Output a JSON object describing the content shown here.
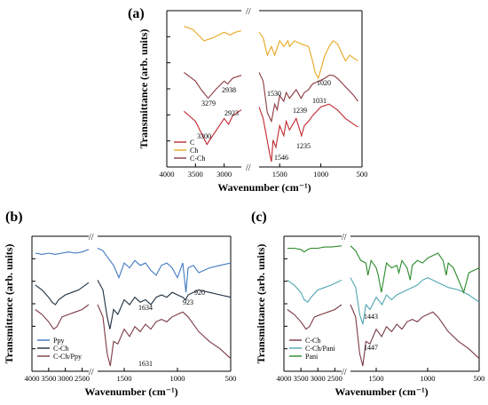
{
  "figure": {
    "panel_labels": [
      "(a)",
      "(b)",
      "(c)"
    ],
    "axis_break_symbol": "//",
    "colors": {
      "C": "#c0282e",
      "Ch": "#e6a81e",
      "C-Ch": "#8a3a3e",
      "Ppy": "#3f78c0",
      "C-Ch_dark": "#1e2f40",
      "C-Ch/Ppy": "#7a3a44",
      "C-Ch/Pani": "#4fa6b0",
      "Pani": "#2a8a2a"
    }
  },
  "chart_data": [
    {
      "panel": "(a)",
      "type": "line",
      "xlabel": "Wavenumber (cm⁻¹)",
      "ylabel": "Transmittance (arb. units)",
      "xlim": [
        4000,
        500
      ],
      "x_reversed": true,
      "x_ticks": [
        4000,
        3500,
        3000,
        1500,
        1000,
        500
      ],
      "axis_break": [
        2700,
        1750
      ],
      "grid": false,
      "legend_position": "bottom-left",
      "series": [
        {
          "name": "C",
          "color": "#c0282e",
          "x": [
            3700,
            3500,
            3400,
            3300,
            3200,
            3000,
            2923,
            2850,
            2700,
            1750,
            1700,
            1620,
            1600,
            1580,
            1546,
            1500,
            1450,
            1420,
            1380,
            1300,
            1235,
            1200,
            1150,
            1100,
            1050,
            1000,
            900,
            800,
            700,
            600,
            550
          ],
          "y": [
            0.35,
            0.28,
            0.2,
            0.12,
            0.18,
            0.3,
            0.26,
            0.32,
            0.36,
            0.38,
            0.3,
            0.05,
            0.0,
            0.15,
            0.1,
            0.25,
            0.18,
            0.28,
            0.22,
            0.3,
            0.18,
            0.25,
            0.28,
            0.32,
            0.35,
            0.38,
            0.4,
            0.36,
            0.3,
            0.26,
            0.24
          ]
        },
        {
          "name": "Ch",
          "color": "#e6a81e",
          "x": [
            3700,
            3550,
            3450,
            3350,
            3200,
            3000,
            2900,
            2800,
            2700,
            1750,
            1700,
            1650,
            1600,
            1560,
            1500,
            1450,
            1400,
            1380,
            1320,
            1250,
            1150,
            1100,
            1070,
            1031,
            1000,
            950,
            900,
            850,
            800,
            750,
            700,
            650,
            600,
            550
          ],
          "y": [
            0.94,
            0.92,
            0.88,
            0.84,
            0.86,
            0.9,
            0.88,
            0.9,
            0.91,
            0.9,
            0.86,
            0.74,
            0.8,
            0.74,
            0.84,
            0.8,
            0.84,
            0.8,
            0.84,
            0.82,
            0.8,
            0.7,
            0.62,
            0.58,
            0.64,
            0.74,
            0.8,
            0.84,
            0.82,
            0.76,
            0.7,
            0.74,
            0.72,
            0.7
          ]
        },
        {
          "name": "C-Ch",
          "color": "#8a3a3e",
          "x": [
            3700,
            3500,
            3400,
            3279,
            3150,
            3000,
            2938,
            2850,
            2700,
            1750,
            1700,
            1650,
            1600,
            1560,
            1530,
            1500,
            1450,
            1420,
            1380,
            1300,
            1239,
            1200,
            1150,
            1100,
            1020,
            950,
            900,
            850,
            800,
            700,
            600,
            550
          ],
          "y": [
            0.62,
            0.56,
            0.5,
            0.44,
            0.5,
            0.56,
            0.54,
            0.58,
            0.6,
            0.62,
            0.56,
            0.34,
            0.28,
            0.4,
            0.36,
            0.46,
            0.42,
            0.48,
            0.44,
            0.5,
            0.44,
            0.48,
            0.5,
            0.54,
            0.56,
            0.58,
            0.6,
            0.6,
            0.58,
            0.52,
            0.46,
            0.42
          ]
        }
      ],
      "annotations": [
        "3279",
        "2938",
        "2923",
        "3300",
        "1530",
        "1239",
        "1031",
        "1020",
        "1546",
        "1235"
      ],
      "legend": [
        "C",
        "Ch",
        "C-Ch"
      ]
    },
    {
      "panel": "(b)",
      "type": "line",
      "xlabel": "Wavenumber (cm⁻¹)",
      "ylabel": "Transmittance (arb. units)",
      "xlim": [
        4000,
        500
      ],
      "x_reversed": true,
      "x_ticks": [
        4000,
        3500,
        3000,
        2500,
        1500,
        1000,
        500
      ],
      "axis_break": [
        2300,
        1750
      ],
      "grid": false,
      "legend_position": "bottom-left",
      "series": [
        {
          "name": "Ppy",
          "color": "#3f78c0",
          "x": [
            3900,
            3700,
            3500,
            3300,
            3100,
            2900,
            2700,
            2500,
            2300,
            1750,
            1700,
            1650,
            1600,
            1550,
            1500,
            1450,
            1400,
            1350,
            1300,
            1250,
            1200,
            1150,
            1100,
            1050,
            1000,
            950,
            920,
            900,
            850,
            800,
            700,
            600,
            500
          ],
          "y": [
            0.92,
            0.91,
            0.92,
            0.91,
            0.92,
            0.93,
            0.92,
            0.93,
            0.95,
            0.96,
            0.94,
            0.88,
            0.82,
            0.72,
            0.84,
            0.8,
            0.86,
            0.82,
            0.84,
            0.78,
            0.74,
            0.82,
            0.84,
            0.8,
            0.72,
            0.84,
            0.6,
            0.8,
            0.82,
            0.76,
            0.8,
            0.82,
            0.84
          ]
        },
        {
          "name": "C-Ch",
          "color": "#1e2f40",
          "x": [
            3900,
            3700,
            3500,
            3400,
            3300,
            3200,
            3000,
            2800,
            2600,
            2300,
            1750,
            1700,
            1660,
            1634,
            1600,
            1560,
            1500,
            1450,
            1400,
            1350,
            1300,
            1250,
            1200,
            1150,
            1100,
            1050,
            1000,
            950,
            923,
            900,
            850,
            800,
            700,
            600,
            500
          ],
          "y": [
            0.66,
            0.62,
            0.56,
            0.52,
            0.5,
            0.54,
            0.58,
            0.6,
            0.62,
            0.68,
            0.7,
            0.62,
            0.4,
            0.3,
            0.46,
            0.42,
            0.54,
            0.5,
            0.56,
            0.52,
            0.54,
            0.5,
            0.56,
            0.58,
            0.56,
            0.6,
            0.58,
            0.56,
            0.54,
            0.58,
            0.6,
            0.62,
            0.6,
            0.58,
            0.56
          ]
        },
        {
          "name": "C-Ch/Ppy",
          "color": "#7a3a44",
          "x": [
            3900,
            3700,
            3500,
            3350,
            3250,
            3100,
            2900,
            2700,
            2500,
            2300,
            1750,
            1700,
            1660,
            1631,
            1600,
            1560,
            1500,
            1450,
            1400,
            1350,
            1300,
            1250,
            1200,
            1150,
            1100,
            1050,
            1000,
            950,
            900,
            850,
            800,
            700,
            600,
            550,
            500
          ],
          "y": [
            0.46,
            0.42,
            0.36,
            0.3,
            0.32,
            0.4,
            0.42,
            0.44,
            0.46,
            0.5,
            0.5,
            0.4,
            0.1,
            0.0,
            0.2,
            0.18,
            0.3,
            0.24,
            0.32,
            0.28,
            0.34,
            0.3,
            0.36,
            0.38,
            0.36,
            0.4,
            0.42,
            0.44,
            0.4,
            0.34,
            0.28,
            0.2,
            0.14,
            0.1,
            0.06
          ]
        }
      ],
      "annotations": [
        "920",
        "923",
        "1634",
        "1631"
      ],
      "legend": [
        "Ppy",
        "C-Ch",
        "C-Ch/Ppy"
      ]
    },
    {
      "panel": "(c)",
      "type": "line",
      "xlabel": "Wavenumber (cm⁻¹)",
      "ylabel": "Transmittance (arb. units)",
      "xlim": [
        4000,
        500
      ],
      "x_reversed": true,
      "x_ticks": [
        4000,
        3500,
        3000,
        2500,
        1500,
        1000,
        500
      ],
      "axis_break": [
        2300,
        1750
      ],
      "grid": false,
      "legend_position": "bottom-left",
      "series": [
        {
          "name": "C-Ch",
          "color": "#7a3a44",
          "x": [
            3900,
            3700,
            3500,
            3350,
            3250,
            3100,
            2900,
            2700,
            2500,
            2300,
            1750,
            1700,
            1660,
            1630,
            1600,
            1560,
            1500,
            1447,
            1400,
            1350,
            1300,
            1250,
            1200,
            1150,
            1100,
            1050,
            1000,
            950,
            900,
            850,
            800,
            700,
            600,
            550,
            500
          ],
          "y": [
            0.46,
            0.42,
            0.36,
            0.3,
            0.32,
            0.4,
            0.42,
            0.44,
            0.46,
            0.5,
            0.5,
            0.4,
            0.1,
            0.0,
            0.2,
            0.18,
            0.3,
            0.24,
            0.32,
            0.28,
            0.34,
            0.3,
            0.36,
            0.38,
            0.36,
            0.4,
            0.42,
            0.44,
            0.4,
            0.34,
            0.28,
            0.2,
            0.14,
            0.1,
            0.06
          ]
        },
        {
          "name": "C-Ch/Pani",
          "color": "#4fa6b0",
          "x": [
            3900,
            3700,
            3500,
            3400,
            3300,
            3200,
            3000,
            2800,
            2600,
            2300,
            1750,
            1700,
            1660,
            1630,
            1600,
            1560,
            1500,
            1443,
            1400,
            1350,
            1300,
            1250,
            1200,
            1150,
            1100,
            1050,
            1000,
            950,
            900,
            850,
            800,
            700,
            600,
            500
          ],
          "y": [
            0.7,
            0.66,
            0.6,
            0.54,
            0.52,
            0.56,
            0.62,
            0.64,
            0.66,
            0.7,
            0.72,
            0.64,
            0.42,
            0.34,
            0.5,
            0.46,
            0.56,
            0.5,
            0.58,
            0.54,
            0.58,
            0.6,
            0.62,
            0.64,
            0.66,
            0.7,
            0.72,
            0.7,
            0.68,
            0.66,
            0.64,
            0.62,
            0.58,
            0.52
          ]
        },
        {
          "name": "Pani",
          "color": "#2a8a2a",
          "x": [
            3900,
            3700,
            3500,
            3400,
            3300,
            3200,
            3000,
            2800,
            2600,
            2300,
            1750,
            1700,
            1650,
            1600,
            1580,
            1550,
            1500,
            1480,
            1450,
            1400,
            1350,
            1300,
            1280,
            1250,
            1200,
            1170,
            1150,
            1100,
            1050,
            1000,
            950,
            900,
            850,
            820,
            800,
            750,
            700,
            650,
            600,
            550,
            500
          ],
          "y": [
            0.96,
            0.96,
            0.95,
            0.93,
            0.95,
            0.96,
            0.96,
            0.97,
            0.97,
            0.98,
            0.98,
            0.94,
            0.86,
            0.84,
            0.74,
            0.86,
            0.8,
            0.74,
            0.6,
            0.84,
            0.8,
            0.82,
            0.76,
            0.86,
            0.8,
            0.7,
            0.82,
            0.86,
            0.84,
            0.88,
            0.9,
            0.92,
            0.86,
            0.74,
            0.84,
            0.8,
            0.7,
            0.6,
            0.76,
            0.78,
            0.8
          ]
        }
      ],
      "annotations": [
        "1443",
        "1447"
      ],
      "legend": [
        "C-Ch",
        "C-Ch/Pani",
        "Pani"
      ]
    }
  ]
}
